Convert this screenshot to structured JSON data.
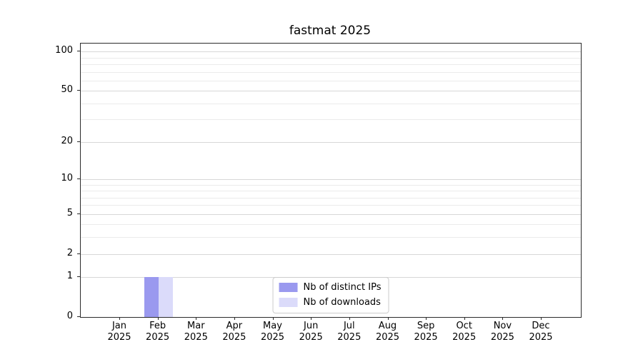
{
  "chart_data": {
    "type": "bar",
    "title": "fastmat 2025",
    "xlabel": "",
    "ylabel": "",
    "yscale": "log1p",
    "ylim": [
      0,
      115
    ],
    "yticks": [
      0,
      1,
      2,
      5,
      10,
      20,
      50,
      100
    ],
    "minor_yticks": [
      3,
      4,
      6,
      7,
      8,
      9,
      30,
      40,
      60,
      70,
      80,
      90
    ],
    "grid": true,
    "legend_position": "lower center",
    "categories": [
      "Jan 2025",
      "Feb 2025",
      "Mar 2025",
      "Apr 2025",
      "May 2025",
      "Jun 2025",
      "Jul 2025",
      "Aug 2025",
      "Sep 2025",
      "Oct 2025",
      "Nov 2025",
      "Dec 2025"
    ],
    "series": [
      {
        "name": "Nb of distinct IPs",
        "color": "#9a99ef",
        "values": [
          0,
          1,
          0,
          0,
          0,
          0,
          0,
          0,
          0,
          0,
          0,
          0
        ]
      },
      {
        "name": "Nb of downloads",
        "color": "#dbdbfa",
        "values": [
          0,
          1,
          0,
          0,
          0,
          0,
          0,
          0,
          0,
          0,
          0,
          0
        ]
      }
    ]
  }
}
